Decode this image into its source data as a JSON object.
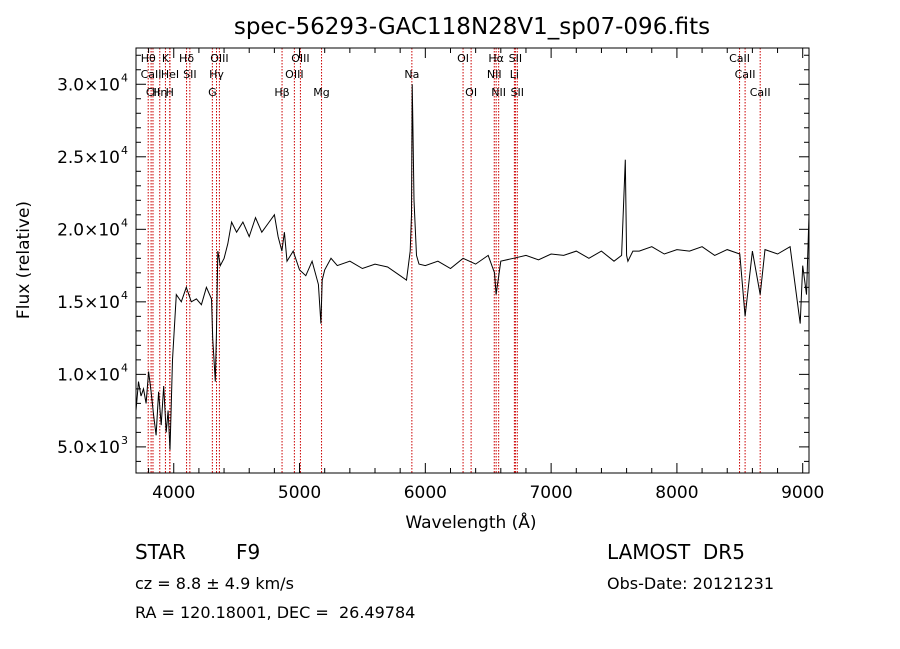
{
  "chart_data": {
    "type": "line",
    "title": "spec-56293-GAC118N28V1_sp07-096.fits",
    "xlabel": "Wavelength (Å)",
    "ylabel": "Flux (relative)",
    "xlim": [
      3700,
      9050
    ],
    "ylim": [
      3200,
      32500
    ],
    "x_ticks": [
      4000,
      5000,
      6000,
      7000,
      8000,
      9000
    ],
    "x_tick_labels": [
      "4000",
      "5000",
      "6000",
      "7000",
      "8000",
      "9000"
    ],
    "y_ticks": [
      5000,
      10000,
      15000,
      20000,
      25000,
      30000
    ],
    "y_tick_mantissa": [
      "5.0",
      "1.0",
      "1.5",
      "2.0",
      "2.5",
      "3.0"
    ],
    "y_tick_exponent": [
      "3",
      "4",
      "4",
      "4",
      "4",
      "4"
    ],
    "grid": false,
    "series": [
      {
        "x": [
          3700,
          3720,
          3740,
          3760,
          3780,
          3800,
          3820,
          3840,
          3860,
          3880,
          3900,
          3920,
          3940,
          3955,
          3970,
          3990,
          4020,
          4060,
          4100,
          4140,
          4180,
          4220,
          4260,
          4300,
          4310,
          4330,
          4340,
          4350,
          4370,
          4400,
          4430,
          4460,
          4500,
          4550,
          4600,
          4650,
          4700,
          4750,
          4800,
          4830,
          4860,
          4880,
          4900,
          4950,
          5000,
          5050,
          5100,
          5150,
          5170,
          5180,
          5200,
          5250,
          5300,
          5400,
          5500,
          5600,
          5700,
          5800,
          5850,
          5880,
          5890,
          5896,
          5900,
          5910,
          5930,
          5950,
          6000,
          6100,
          6200,
          6300,
          6400,
          6500,
          6550,
          6563,
          6600,
          6700,
          6800,
          6900,
          7000,
          7100,
          7200,
          7300,
          7400,
          7500,
          7560,
          7590,
          7600,
          7610,
          7650,
          7700,
          7800,
          7900,
          8000,
          8100,
          8200,
          8300,
          8400,
          8500,
          8542,
          8600,
          8662,
          8700,
          8800,
          8900,
          8980,
          9000,
          9030,
          9050
        ],
        "y": [
          7500,
          9500,
          8500,
          9000,
          8000,
          10200,
          8800,
          7200,
          5800,
          8800,
          6500,
          9200,
          6000,
          7500,
          4800,
          11000,
          15500,
          15000,
          16000,
          15000,
          15200,
          14800,
          16000,
          15200,
          12500,
          9500,
          13000,
          18500,
          17500,
          18000,
          19000,
          20500,
          19800,
          20500,
          19500,
          20800,
          19800,
          20400,
          21000,
          19500,
          18500,
          19800,
          17800,
          18500,
          17200,
          16800,
          17800,
          16200,
          13500,
          16500,
          17200,
          18000,
          17500,
          17800,
          17300,
          17600,
          17400,
          16800,
          16500,
          18500,
          21000,
          30000,
          28000,
          22000,
          18200,
          17600,
          17500,
          17800,
          17300,
          18000,
          17600,
          18200,
          17000,
          15500,
          17800,
          18000,
          18200,
          17900,
          18300,
          18200,
          18500,
          18000,
          18500,
          17800,
          18200,
          24800,
          18200,
          17800,
          18500,
          18500,
          18800,
          18300,
          18600,
          18500,
          18800,
          18200,
          18600,
          18300,
          14000,
          18500,
          15500,
          18600,
          18300,
          18800,
          13500,
          17500,
          15500,
          21000
        ]
      }
    ],
    "lines": [
      {
        "x": 3797,
        "label": "Hθ",
        "row": 1
      },
      {
        "x": 3820,
        "label": "CaII",
        "row": 2
      },
      {
        "x": 3835,
        "label": "CII",
        "row": 3
      },
      {
        "x": 3889,
        "label": "Hη",
        "row": 3
      },
      {
        "x": 3934,
        "label": "K",
        "row": 1
      },
      {
        "x": 3968,
        "label": "H",
        "row": 3
      },
      {
        "x": 3970,
        "label": "HeI",
        "row": 2
      },
      {
        "x": 4102,
        "label": "Hδ",
        "row": 1
      },
      {
        "x": 4128,
        "label": "SII",
        "row": 2
      },
      {
        "x": 4307,
        "label": "G",
        "row": 3
      },
      {
        "x": 4340,
        "label": "Hγ",
        "row": 2
      },
      {
        "x": 4363,
        "label": "OIII",
        "row": 1
      },
      {
        "x": 4861,
        "label": "Hβ",
        "row": 3
      },
      {
        "x": 4959,
        "label": "OIII",
        "row": 2
      },
      {
        "x": 5007,
        "label": "OIII",
        "row": 1
      },
      {
        "x": 5175,
        "label": "Mg",
        "row": 3
      },
      {
        "x": 5893,
        "label": "Na",
        "row": 2
      },
      {
        "x": 6300,
        "label": "OI",
        "row": 1
      },
      {
        "x": 6364,
        "label": "OI",
        "row": 3
      },
      {
        "x": 6548,
        "label": "NII",
        "row": 2
      },
      {
        "x": 6563,
        "label": "Hα",
        "row": 1
      },
      {
        "x": 6583,
        "label": "NII",
        "row": 3
      },
      {
        "x": 6708,
        "label": "Li",
        "row": 2
      },
      {
        "x": 6716,
        "label": "SII",
        "row": 1
      },
      {
        "x": 6731,
        "label": "SII",
        "row": 3
      },
      {
        "x": 8498,
        "label": "CaII",
        "row": 1
      },
      {
        "x": 8542,
        "label": "CaII",
        "row": 2
      },
      {
        "x": 8662,
        "label": "CaII",
        "row": 3
      }
    ],
    "line_color": "#cc0000"
  },
  "info": {
    "class": "STAR",
    "subclass": "F9",
    "survey": "LAMOST  DR5",
    "cz": "cz = 8.8 ± 4.9 km/s",
    "obsdate": "Obs-Date: 20121231",
    "radec": "RA = 120.18001, DEC =  26.49784"
  }
}
